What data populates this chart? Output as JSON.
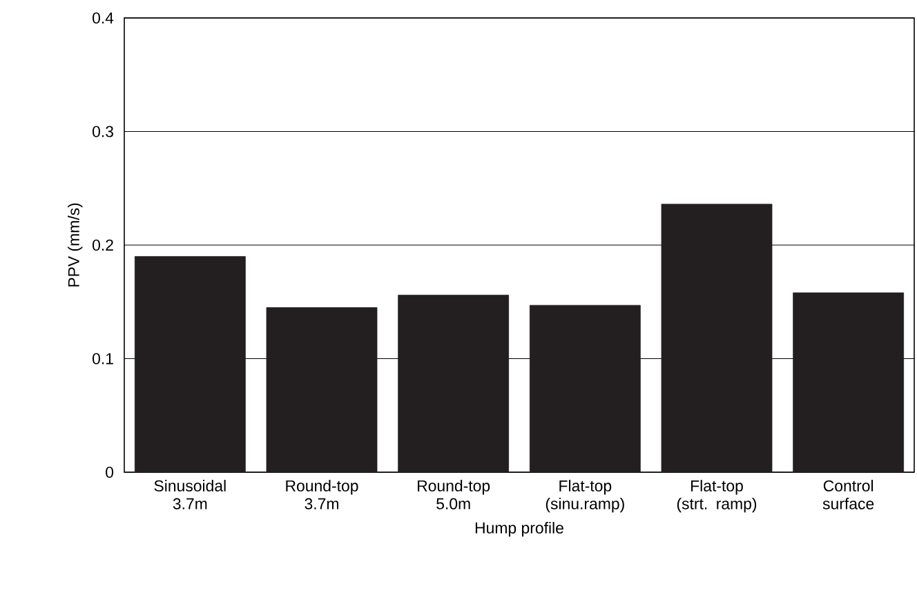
{
  "chart_data": {
    "type": "bar",
    "xlabel": "Hump profile",
    "ylabel": "PPV (mm/s)",
    "categories": [
      "Sinusoidal 3.7m",
      "Round-top 3.7m",
      "Round-top 5.0m",
      "Flat-top (sinu.ramp)",
      "Flat-top (strt. ramp)",
      "Control surface"
    ],
    "values": [
      0.19,
      0.145,
      0.156,
      0.147,
      0.236,
      0.158
    ],
    "color": "#231f20",
    "ylim": [
      0,
      0.4
    ],
    "yticks": [
      0,
      0.1,
      0.2,
      0.3,
      0.4
    ],
    "grid": "y"
  }
}
